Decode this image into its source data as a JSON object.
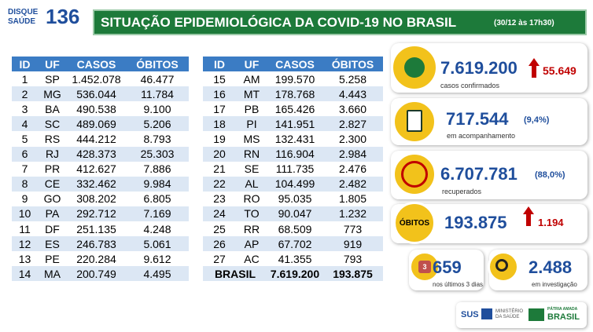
{
  "header": {
    "logo": {
      "line1": "DISQUE",
      "line2": "SAÚDE",
      "number": "136"
    },
    "title": "SITUAÇÃO EPIDEMIOLÓGICA DA COVID-19 NO BRASIL",
    "timestamp": "(30/12 às 17h30)"
  },
  "table": {
    "columns": [
      "ID",
      "UF",
      "CASOS",
      "ÓBITOS"
    ],
    "rows": [
      [
        "1",
        "SP",
        "1.452.078",
        "46.477"
      ],
      [
        "2",
        "MG",
        "536.044",
        "11.784"
      ],
      [
        "3",
        "BA",
        "490.538",
        "9.100"
      ],
      [
        "4",
        "SC",
        "489.069",
        "5.206"
      ],
      [
        "5",
        "RS",
        "444.212",
        "8.793"
      ],
      [
        "6",
        "RJ",
        "428.373",
        "25.303"
      ],
      [
        "7",
        "PR",
        "412.627",
        "7.886"
      ],
      [
        "8",
        "CE",
        "332.462",
        "9.984"
      ],
      [
        "9",
        "GO",
        "308.202",
        "6.805"
      ],
      [
        "10",
        "PA",
        "292.712",
        "7.169"
      ],
      [
        "11",
        "DF",
        "251.135",
        "4.248"
      ],
      [
        "12",
        "ES",
        "246.783",
        "5.061"
      ],
      [
        "13",
        "PE",
        "220.284",
        "9.612"
      ],
      [
        "14",
        "MA",
        "200.749",
        "4.495"
      ],
      [
        "15",
        "AM",
        "199.570",
        "5.258"
      ],
      [
        "16",
        "MT",
        "178.768",
        "4.443"
      ],
      [
        "17",
        "PB",
        "165.426",
        "3.660"
      ],
      [
        "18",
        "PI",
        "141.951",
        "2.827"
      ],
      [
        "19",
        "MS",
        "132.431",
        "2.300"
      ],
      [
        "20",
        "RN",
        "116.904",
        "2.984"
      ],
      [
        "21",
        "SE",
        "111.735",
        "2.476"
      ],
      [
        "22",
        "AL",
        "104.499",
        "2.482"
      ],
      [
        "23",
        "RO",
        "95.035",
        "1.805"
      ],
      [
        "24",
        "TO",
        "90.047",
        "1.232"
      ],
      [
        "25",
        "RR",
        "68.509",
        "773"
      ],
      [
        "26",
        "AP",
        "67.702",
        "919"
      ],
      [
        "27",
        "AC",
        "41.355",
        "793"
      ]
    ],
    "total": {
      "label": "BRASIL",
      "casos": "7.619.200",
      "obitos": "193.875"
    }
  },
  "indicators": {
    "confirmados": {
      "value": "7.619.200",
      "change": "55.649",
      "label": "casos confirmados"
    },
    "acompanhamento": {
      "value": "717.544",
      "percent": "(9,4%)",
      "label": "em acompanhamento"
    },
    "recuperados": {
      "value": "6.707.781",
      "percent": "(88,0%)",
      "label": "recuperados"
    },
    "obitos": {
      "badge": "ÓBITOS",
      "value": "193.875",
      "change": "1.194"
    },
    "ultimos": {
      "badge": "3",
      "value": "659",
      "label": "nos últimos 3 dias"
    },
    "investigacao": {
      "value": "2.488",
      "label": "em investigação"
    }
  },
  "footer": {
    "sus": "SUS",
    "ministry": "MINISTÉRIO DA SAÚDE",
    "motto": "PÁTRIA AMADA",
    "brasil": "BRASIL"
  }
}
